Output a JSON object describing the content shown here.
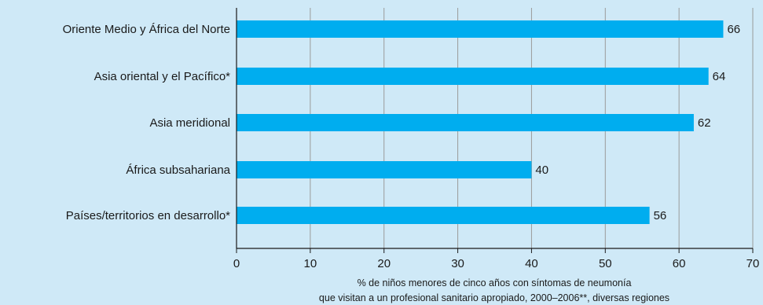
{
  "chart_data": {
    "type": "bar",
    "orientation": "horizontal",
    "categories": [
      "Oriente Medio y África del Norte",
      "Asia oriental y el Pacífico*",
      "Asia meridional",
      "África subsahariana",
      "Países/territorios en desarrollo*"
    ],
    "values": [
      66,
      64,
      62,
      40,
      56
    ],
    "xlabel_lines": [
      "% de niños menores de cinco años con síntomas de neumonía",
      "que visitan a un profesional sanitario apropiado, 2000–2006**, diversas regiones"
    ],
    "xlim": [
      0,
      70
    ],
    "xticks": [
      0,
      10,
      20,
      30,
      40,
      50,
      60,
      70
    ],
    "grid": true,
    "legend": "none",
    "colors": {
      "bar": "#00adef",
      "background": "#cfe9f7",
      "grid": "#9a9a9a",
      "axis": "#1a1a1a"
    }
  }
}
